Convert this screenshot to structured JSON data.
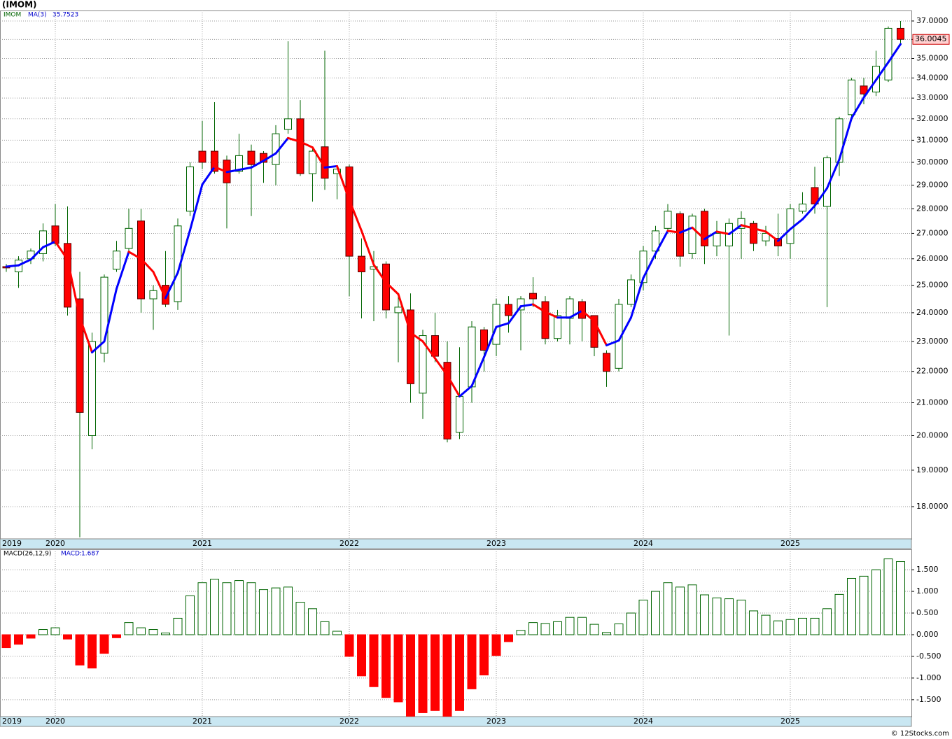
{
  "title": "(IMOM)",
  "footer": "© 12Stocks.com",
  "chart_data": [
    {
      "type": "candlestick",
      "log_scale": true,
      "grid": true,
      "categories": [
        "2019",
        null,
        null,
        null,
        "2020",
        null,
        null,
        null,
        null,
        null,
        null,
        null,
        null,
        null,
        null,
        null,
        "2021",
        null,
        null,
        null,
        null,
        null,
        null,
        null,
        null,
        null,
        null,
        null,
        "2022",
        null,
        null,
        null,
        null,
        null,
        null,
        null,
        null,
        null,
        null,
        null,
        "2023",
        null,
        null,
        null,
        null,
        null,
        null,
        null,
        null,
        null,
        null,
        null,
        "2024",
        null,
        null,
        null,
        null,
        null,
        null,
        null,
        null,
        null,
        null,
        null,
        "2025",
        null,
        null,
        null,
        null,
        null,
        null,
        null,
        null,
        null
      ],
      "ylim": [
        17.16,
        37.58
      ],
      "yticks": [
        {
          "value": 18,
          "label": "18.0000"
        },
        {
          "value": 19,
          "label": "19.0000"
        },
        {
          "value": 20,
          "label": "20.0000"
        },
        {
          "value": 21,
          "label": "21.0000"
        },
        {
          "value": 22,
          "label": "22.0000"
        },
        {
          "value": 23,
          "label": "23.0000"
        },
        {
          "value": 24,
          "label": "24.0000"
        },
        {
          "value": 25,
          "label": "25.0000"
        },
        {
          "value": 26,
          "label": "26.0000"
        },
        {
          "value": 27,
          "label": "27.0000"
        },
        {
          "value": 28,
          "label": "28.0000"
        },
        {
          "value": 29,
          "label": "29.0000"
        },
        {
          "value": 30,
          "label": "30.0000"
        },
        {
          "value": 31,
          "label": "31.0000"
        },
        {
          "value": 32,
          "label": "32.0000"
        },
        {
          "value": 33,
          "label": "33.0000"
        },
        {
          "value": 34,
          "label": "34.0000"
        },
        {
          "value": 35,
          "label": "35.0000"
        },
        {
          "value": 36,
          "label": "36.0000"
        },
        {
          "value": 37,
          "label": "37.0000"
        }
      ],
      "series": [
        {
          "name": "IMOM",
          "color": "#006400",
          "up_color": "#ffffff",
          "down_color": "#ff0000",
          "open": [
            25.7,
            25.5,
            26.0,
            26.2,
            27.3,
            26.6,
            24.5,
            20.0,
            22.6,
            25.6,
            26.4,
            27.5,
            24.5,
            25.0,
            24.4,
            27.9,
            30.5,
            30.5,
            30.1,
            29.6,
            30.5,
            30.4,
            29.9,
            31.5,
            32.0,
            29.5,
            30.7,
            29.5,
            29.8,
            26.1,
            25.6,
            25.8,
            24.0,
            24.1,
            21.3,
            23.2,
            22.3,
            20.1,
            21.5,
            23.4,
            22.9,
            24.3,
            24.1,
            24.7,
            24.4,
            23.1,
            23.8,
            24.4,
            23.9,
            22.6,
            22.1,
            24.3,
            25.1,
            26.3,
            27.2,
            27.8,
            26.2,
            27.9,
            26.5,
            26.5,
            27.2,
            27.4,
            26.7,
            26.8,
            26.6,
            27.9,
            28.9,
            28.1,
            30.0,
            32.2,
            33.6,
            33.3,
            33.9,
            36.6
          ],
          "high": [
            25.8,
            26.1,
            26.4,
            27.4,
            28.2,
            28.1,
            25.5,
            23.3,
            25.4,
            26.7,
            28.0,
            28.0,
            25.0,
            26.3,
            27.6,
            30.0,
            31.9,
            32.8,
            30.3,
            31.3,
            30.8,
            30.5,
            31.7,
            35.9,
            32.9,
            30.7,
            35.4,
            29.8,
            29.9,
            26.8,
            26.3,
            25.9,
            24.6,
            24.7,
            23.4,
            24.0,
            23.0,
            22.8,
            23.7,
            23.5,
            24.5,
            24.6,
            24.6,
            25.3,
            24.6,
            24.1,
            24.6,
            24.5,
            23.9,
            22.7,
            24.5,
            25.4,
            26.5,
            27.3,
            28.2,
            27.9,
            27.8,
            28.0,
            27.5,
            27.6,
            27.9,
            27.5,
            27.3,
            27.8,
            28.2,
            28.7,
            29.8,
            30.3,
            32.1,
            34.0,
            34.0,
            35.4,
            36.7,
            37.0
          ],
          "low": [
            25.5,
            24.9,
            25.8,
            25.9,
            26.5,
            23.9,
            17.2,
            19.6,
            22.3,
            25.5,
            26.2,
            24.0,
            23.4,
            24.2,
            24.1,
            27.7,
            29.7,
            29.5,
            27.2,
            29.5,
            27.7,
            29.1,
            29.0,
            31.3,
            29.4,
            28.3,
            28.8,
            28.4,
            24.6,
            23.8,
            23.7,
            23.8,
            22.3,
            21.0,
            20.5,
            22.3,
            19.8,
            19.9,
            21.0,
            22.0,
            22.5,
            23.3,
            22.7,
            24.2,
            22.9,
            23.0,
            22.9,
            23.0,
            22.5,
            21.5,
            22.0,
            24.2,
            24.8,
            26.0,
            27.0,
            25.7,
            26.0,
            25.8,
            26.1,
            23.2,
            26.0,
            26.3,
            26.5,
            26.1,
            26.0,
            27.8,
            27.8,
            24.2,
            29.4,
            31.9,
            32.7,
            33.1,
            33.8,
            35.8
          ],
          "close": [
            25.65,
            25.95,
            26.3,
            27.1,
            26.6,
            24.2,
            20.7,
            23.0,
            25.3,
            26.3,
            27.2,
            24.5,
            24.8,
            24.3,
            27.3,
            29.8,
            30.0,
            29.6,
            29.1,
            30.3,
            29.9,
            30.0,
            31.3,
            32.0,
            29.5,
            30.5,
            29.3,
            29.7,
            26.1,
            25.5,
            25.7,
            24.1,
            24.2,
            21.6,
            23.2,
            22.5,
            19.9,
            21.2,
            23.5,
            22.7,
            24.3,
            23.9,
            24.5,
            24.5,
            23.1,
            23.9,
            24.5,
            23.8,
            22.8,
            22.0,
            24.3,
            25.2,
            26.3,
            27.1,
            27.9,
            26.1,
            27.7,
            26.5,
            27.0,
            27.4,
            27.6,
            26.6,
            27.0,
            26.5,
            28.0,
            28.2,
            28.2,
            30.2,
            32.0,
            33.9,
            33.2,
            34.6,
            36.6,
            36.0045
          ]
        },
        {
          "name": "MA(3)",
          "type": "line",
          "up_color": "#0000ff",
          "down_color": "#ff0000",
          "values": [
            25.7,
            25.75,
            25.97,
            26.45,
            26.67,
            25.97,
            23.83,
            22.63,
            23.0,
            24.87,
            26.27,
            26.0,
            25.5,
            24.53,
            25.47,
            27.13,
            29.03,
            29.8,
            29.57,
            29.67,
            29.77,
            30.07,
            30.4,
            31.1,
            30.93,
            30.67,
            29.77,
            29.83,
            28.37,
            27.1,
            25.77,
            25.1,
            24.67,
            23.3,
            23.0,
            22.43,
            21.87,
            21.2,
            21.53,
            22.47,
            23.5,
            23.63,
            24.23,
            24.3,
            24.03,
            23.83,
            23.83,
            24.07,
            23.7,
            22.87,
            23.03,
            23.83,
            25.27,
            26.2,
            27.1,
            27.03,
            27.23,
            26.77,
            27.07,
            26.97,
            27.33,
            27.2,
            27.07,
            26.7,
            27.17,
            27.57,
            28.13,
            28.87,
            30.13,
            32.03,
            33.03,
            33.9,
            34.8,
            35.7523
          ]
        }
      ]
    },
    {
      "type": "histogram",
      "title": "MACD(26,12,9)",
      "value_prefix": "MACD:",
      "grid": true,
      "up_color": "#006400",
      "down_color": "#ff0000",
      "ylim": [
        -1.89,
        1.97
      ],
      "yticks": [
        {
          "value": -1.5,
          "label": "-1.500"
        },
        {
          "value": -1,
          "label": "-1.000"
        },
        {
          "value": -0.5,
          "label": "-0.500"
        },
        {
          "value": 0,
          "label": "0.000"
        },
        {
          "value": 0.5,
          "label": "0.500"
        },
        {
          "value": 1,
          "label": "1.000"
        },
        {
          "value": 1.5,
          "label": "1.500"
        }
      ],
      "values": [
        -0.3,
        -0.22,
        -0.08,
        0.12,
        0.16,
        -0.1,
        -0.7,
        -0.77,
        -0.43,
        -0.07,
        0.28,
        0.16,
        0.12,
        0.04,
        0.38,
        0.9,
        1.2,
        1.28,
        1.2,
        1.25,
        1.2,
        1.04,
        1.08,
        1.1,
        0.75,
        0.6,
        0.3,
        0.08,
        -0.5,
        -0.95,
        -1.2,
        -1.45,
        -1.55,
        -1.88,
        -1.8,
        -1.75,
        -1.9,
        -1.75,
        -1.25,
        -0.93,
        -0.48,
        -0.16,
        0.1,
        0.28,
        0.26,
        0.3,
        0.4,
        0.4,
        0.24,
        0.05,
        0.25,
        0.5,
        0.8,
        1.0,
        1.2,
        1.1,
        1.15,
        0.92,
        0.85,
        0.83,
        0.8,
        0.55,
        0.45,
        0.32,
        0.35,
        0.38,
        0.38,
        0.6,
        0.93,
        1.3,
        1.35,
        1.5,
        1.75,
        1.687
      ]
    }
  ]
}
